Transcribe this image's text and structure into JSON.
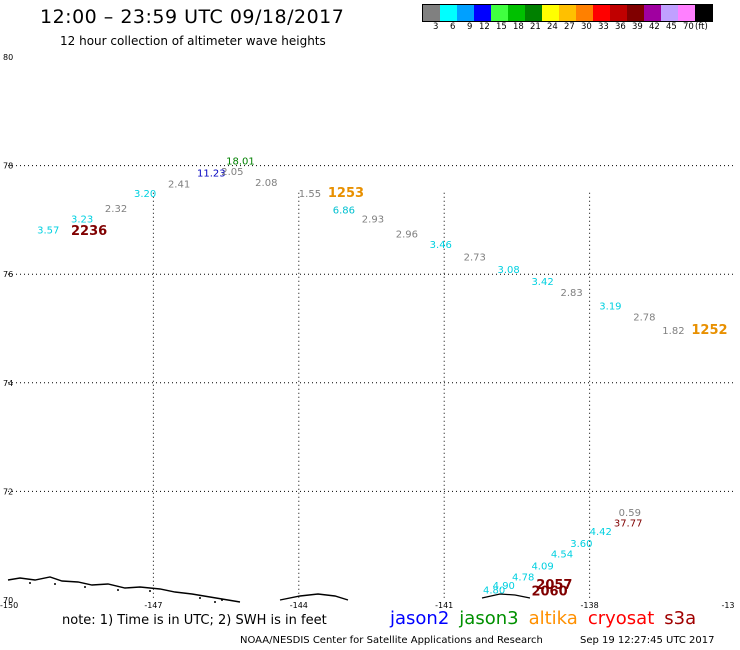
{
  "header": {
    "title": "12:00 – 23:59 UTC 09/18/2017",
    "subtitle": "12 hour collection of altimeter wave heights"
  },
  "legend": {
    "swatches": [
      {
        "label": "3",
        "color": "#808080"
      },
      {
        "label": "6",
        "color": "#00ffff"
      },
      {
        "label": "9",
        "color": "#00a0ff"
      },
      {
        "label": "12",
        "color": "#0000ff"
      },
      {
        "label": "15",
        "color": "#40ff40"
      },
      {
        "label": "18",
        "color": "#00c000"
      },
      {
        "label": "21",
        "color": "#008000"
      },
      {
        "label": "24",
        "color": "#ffff00"
      },
      {
        "label": "27",
        "color": "#ffc000"
      },
      {
        "label": "30",
        "color": "#ff8000"
      },
      {
        "label": "33",
        "color": "#ff0000"
      },
      {
        "label": "36",
        "color": "#c00000"
      },
      {
        "label": "39",
        "color": "#800000"
      },
      {
        "label": "42",
        "color": "#a000a0"
      },
      {
        "label": "45",
        "color": "#c0a0ff"
      },
      {
        "label": "70",
        "color": "#ff80ff"
      },
      {
        "label": "",
        "color": "#000000"
      }
    ],
    "unit": "(ft)"
  },
  "map": {
    "lon_range": [
      -150,
      -135
    ],
    "lat_range": [
      70,
      80
    ],
    "lat_ticks": [
      "80",
      "78",
      "76",
      "74",
      "72",
      "70"
    ],
    "lon_ticks": [
      "-150",
      "-147",
      "-144",
      "-141",
      "-138",
      "-13"
    ],
    "observations": [
      {
        "text": "3.57",
        "lon": -149.4,
        "lat": 76.75,
        "color": "#00d0e0"
      },
      {
        "text": "3.23",
        "lon": -148.7,
        "lat": 76.95,
        "color": "#00d0e0"
      },
      {
        "text": "2236",
        "lon": -148.7,
        "lat": 76.72,
        "color": "#800000"
      },
      {
        "text": "2.32",
        "lon": -148.0,
        "lat": 77.15,
        "color": "#808080"
      },
      {
        "text": "3.20",
        "lon": -147.4,
        "lat": 77.42,
        "color": "#00d0e0"
      },
      {
        "text": "2.41",
        "lon": -146.7,
        "lat": 77.6,
        "color": "#808080"
      },
      {
        "text": "11.23",
        "lon": -146.1,
        "lat": 77.8,
        "color": "#0000c0"
      },
      {
        "text": "2.05",
        "lon": -145.6,
        "lat": 77.83,
        "color": "#808080"
      },
      {
        "text": "18.01",
        "lon": -145.5,
        "lat": 78.02,
        "color": "#008000"
      },
      {
        "text": "2.08",
        "lon": -144.9,
        "lat": 77.62,
        "color": "#808080"
      },
      {
        "text": "1.55",
        "lon": -144.0,
        "lat": 77.42,
        "color": "#808080"
      },
      {
        "text": "1253",
        "lon": -143.4,
        "lat": 77.42,
        "color": "#e89000"
      },
      {
        "text": "6.86",
        "lon": -143.3,
        "lat": 77.12,
        "color": "#00c0d0"
      },
      {
        "text": "2.93",
        "lon": -142.7,
        "lat": 76.95,
        "color": "#808080"
      },
      {
        "text": "2.96",
        "lon": -142.0,
        "lat": 76.68,
        "color": "#808080"
      },
      {
        "text": "3.46",
        "lon": -141.3,
        "lat": 76.48,
        "color": "#00d0e0"
      },
      {
        "text": "2.73",
        "lon": -140.6,
        "lat": 76.25,
        "color": "#808080"
      },
      {
        "text": "3.08",
        "lon": -139.9,
        "lat": 76.02,
        "color": "#00d0e0"
      },
      {
        "text": "3.42",
        "lon": -139.2,
        "lat": 75.8,
        "color": "#00d0e0"
      },
      {
        "text": "2.83",
        "lon": -138.6,
        "lat": 75.6,
        "color": "#808080"
      },
      {
        "text": "3.19",
        "lon": -137.8,
        "lat": 75.35,
        "color": "#00d0e0"
      },
      {
        "text": "2.78",
        "lon": -137.1,
        "lat": 75.15,
        "color": "#808080"
      },
      {
        "text": "1.82",
        "lon": -136.5,
        "lat": 74.9,
        "color": "#808080"
      },
      {
        "text": "1252",
        "lon": -135.9,
        "lat": 74.9,
        "color": "#e89000"
      },
      {
        "text": "0.59",
        "lon": -137.4,
        "lat": 71.55,
        "color": "#808080"
      },
      {
        "text": "37.77",
        "lon": -137.5,
        "lat": 71.35,
        "color": "#800000"
      },
      {
        "text": "4.42",
        "lon": -138.0,
        "lat": 71.2,
        "color": "#00d0e0"
      },
      {
        "text": "3.60",
        "lon": -138.4,
        "lat": 70.98,
        "color": "#00d0e0"
      },
      {
        "text": "4.54",
        "lon": -138.8,
        "lat": 70.78,
        "color": "#00d0e0"
      },
      {
        "text": "4.09",
        "lon": -139.2,
        "lat": 70.56,
        "color": "#00d0e0"
      },
      {
        "text": "4.78",
        "lon": -139.6,
        "lat": 70.36,
        "color": "#00d0e0"
      },
      {
        "text": "2057",
        "lon": -139.1,
        "lat": 70.2,
        "color": "#800000"
      },
      {
        "text": "4.90",
        "lon": -140.0,
        "lat": 70.2,
        "color": "#00d0e0"
      },
      {
        "text": "4.80",
        "lon": -140.2,
        "lat": 70.12,
        "color": "#00d0e0"
      },
      {
        "text": "2060",
        "lon": -139.2,
        "lat": 70.08,
        "color": "#800000"
      }
    ]
  },
  "footer": {
    "note": "note: 1) Time is in UTC; 2) SWH is in feet",
    "satellites": [
      {
        "name": "jason2",
        "color": "#0000ff"
      },
      {
        "name": "jason3",
        "color": "#009000"
      },
      {
        "name": "altika",
        "color": "#ff9000"
      },
      {
        "name": "cryosat",
        "color": "#ff0000"
      },
      {
        "name": "s3a",
        "color": "#a00000"
      }
    ],
    "credit": "NOAA/NESDIS Center for Satellite Applications and Research",
    "timestamp": "Sep 19 12:27:45 UTC 2017"
  }
}
